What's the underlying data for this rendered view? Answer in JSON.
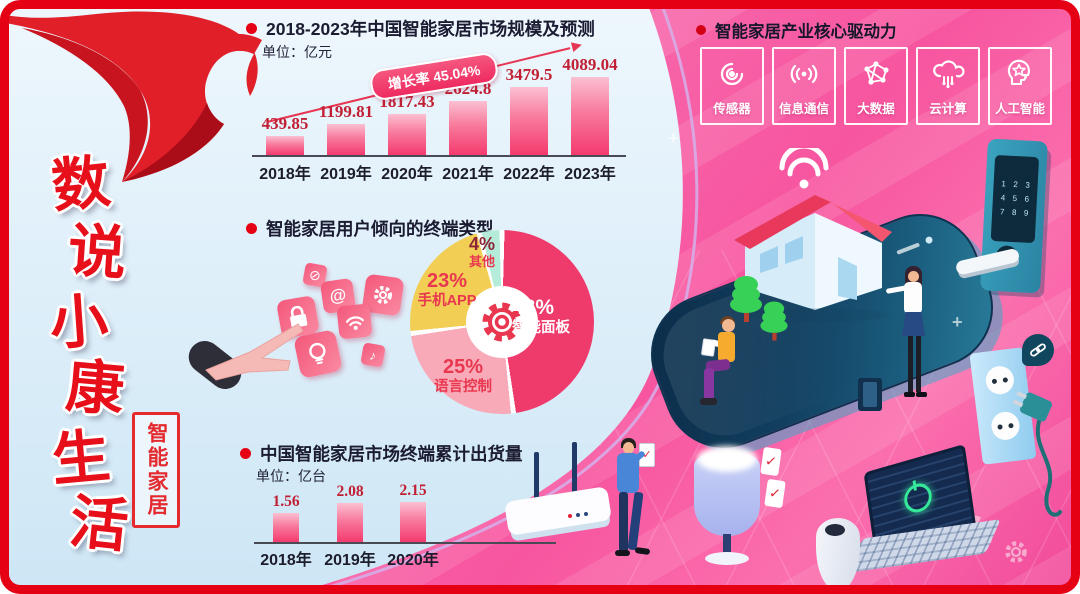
{
  "colors": {
    "frame_red": "#e60013",
    "bar_gradient_top": "#fbc0d2",
    "bar_gradient_bottom": "#f43a6e",
    "value_label": "#c11f33",
    "left_bg": "#d9ecf8",
    "right_bg_pink": "#f7559f"
  },
  "banner": {
    "title": "数说小康生活",
    "title_chars": [
      "数",
      "说",
      "小",
      "康",
      "生",
      "活"
    ],
    "tag": "智能家居"
  },
  "chart_data": [
    {
      "type": "bar",
      "title": "2018-2023年中国智能家居市场规模及预测",
      "unit": "单位：亿元",
      "growth_label": "增长率 45.04%",
      "categories": [
        "2018年",
        "2019年",
        "2020年",
        "2021年",
        "2022年",
        "2023年"
      ],
      "values": [
        439.85,
        1199.81,
        1817.43,
        2624.8,
        3479.5,
        4089.04
      ],
      "value_labels": [
        "439.85",
        "1199.81",
        "1817.43",
        "2624.8",
        "3479.5",
        "4089.04"
      ],
      "ylabel": "亿元",
      "grid": false
    },
    {
      "type": "pie",
      "title": "智能家居用户倾向的终端类型",
      "center_icon": "gear-icon",
      "slices": [
        {
          "label": "智能面板",
          "pct": 48,
          "pct_label": "48%",
          "color": "#ef3a6c",
          "text_color": "#ffffff"
        },
        {
          "label": "语言控制",
          "pct": 25,
          "pct_label": "25%",
          "color": "#f8aab8",
          "text_color": "#e8374f"
        },
        {
          "label": "手机APP",
          "pct": 23,
          "pct_label": "23%",
          "color": "#f3ce55",
          "text_color": "#e8374f"
        },
        {
          "label": "其他",
          "pct": 4,
          "pct_label": "4%",
          "color": "#b5ecd9",
          "text_color": "#8d2436"
        }
      ]
    },
    {
      "type": "bar",
      "title": "中国智能家居市场终端累计出货量",
      "unit": "单位：亿台",
      "categories": [
        "2018年",
        "2019年",
        "2020年"
      ],
      "values": [
        1.56,
        2.08,
        2.15
      ],
      "value_labels": [
        "1.56",
        "2.08",
        "2.15"
      ],
      "ylabel": "亿台",
      "grid": false
    }
  ],
  "drivers": {
    "title": "智能家居产业核心驱动力",
    "items": [
      {
        "label": "传感器",
        "icon": "sensor-icon"
      },
      {
        "label": "信息通信",
        "icon": "communication-icon"
      },
      {
        "label": "大数据",
        "icon": "bigdata-icon"
      },
      {
        "label": "云计算",
        "icon": "cloud-icon"
      },
      {
        "label": "人工智能",
        "icon": "ai-icon"
      }
    ]
  },
  "illustration": {
    "lock_keypad": [
      "1",
      "2",
      "3",
      "4",
      "5",
      "6",
      "7",
      "8",
      "9"
    ]
  }
}
